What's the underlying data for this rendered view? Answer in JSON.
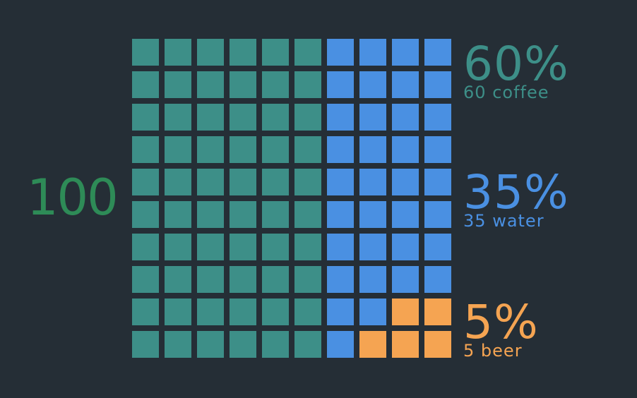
{
  "chart_data": {
    "type": "waffle",
    "total": "100",
    "grid": {
      "rows": 10,
      "cols": 10
    },
    "fill_order": "column-major from left, top to bottom; last category fills from bottom-right",
    "categories": [
      {
        "name": "coffee",
        "count": 60,
        "percent_label": "60%",
        "count_label": "60",
        "color": "#3d8f88"
      },
      {
        "name": "water",
        "count": 35,
        "percent_label": "35%",
        "count_label": "35",
        "color": "#4a90e2"
      },
      {
        "name": "beer",
        "count": 5,
        "percent_label": "5%",
        "count_label": "5",
        "color": "#f5a452"
      }
    ],
    "total_color": "#2e8b57"
  }
}
